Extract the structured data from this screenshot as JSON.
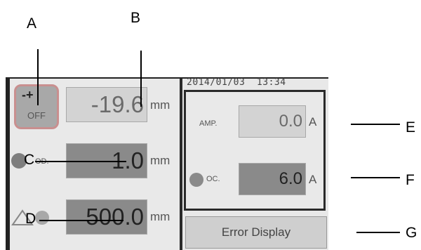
{
  "callouts": [
    "A",
    "B",
    "C",
    "D",
    "E",
    "F",
    "G"
  ],
  "datetime": "2014/01/03  13:34",
  "left": {
    "off_button": {
      "sign": "-+",
      "label": "OFF"
    },
    "position": {
      "value": "-19.6",
      "unit": "mm"
    },
    "od": {
      "label": "OD.",
      "value": "1.0",
      "unit": "mm"
    },
    "length": {
      "value": "500.0",
      "unit": "mm"
    }
  },
  "right": {
    "amp": {
      "label": "AMP.",
      "value": "0.0",
      "unit": "A"
    },
    "oc": {
      "label": "OC.",
      "value": "6.0",
      "unit": "A"
    }
  },
  "error_button": {
    "label": "Error Display"
  }
}
